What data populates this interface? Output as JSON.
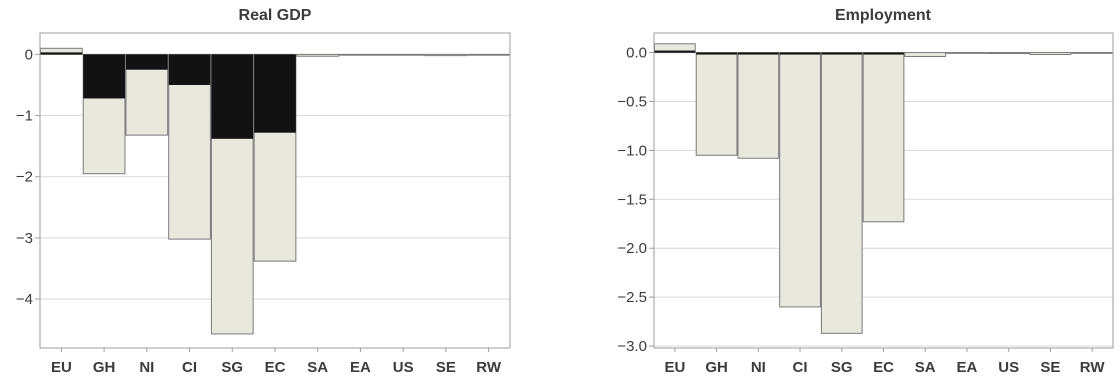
{
  "colors": {
    "total": "#e8e8df",
    "black": "#121212",
    "bar_edge": "#7a7a7a"
  },
  "chart_data": [
    {
      "type": "bar",
      "title": "Real GDP",
      "xlabel": "",
      "ylabel": "",
      "categories": [
        "EU",
        "GH",
        "NI",
        "CI",
        "SG",
        "EC",
        "SA",
        "EA",
        "US",
        "SE",
        "RW"
      ],
      "ylim": [
        -4.8,
        0.35
      ],
      "yticks": [
        0,
        -1,
        -2,
        -3,
        -4
      ],
      "ytick_labels": [
        "0",
        "−1",
        "−2",
        "−3",
        "−4"
      ],
      "grid": true,
      "series": [
        {
          "values": [
            0.1,
            -1.95,
            -1.32,
            -3.02,
            -4.57,
            -3.38,
            -0.03,
            0.0,
            0.0,
            -0.02,
            0.0
          ]
        },
        {
          "values": [
            0.02,
            -0.72,
            -0.25,
            -0.5,
            -1.38,
            -1.28,
            0.0,
            0.0,
            0.0,
            0.0,
            0.0
          ]
        }
      ]
    },
    {
      "type": "bar",
      "title": "Employment",
      "xlabel": "",
      "ylabel": "",
      "categories": [
        "EU",
        "GH",
        "NI",
        "CI",
        "SG",
        "EC",
        "SA",
        "EA",
        "US",
        "SE",
        "RW"
      ],
      "ylim": [
        -3.02,
        0.2
      ],
      "yticks": [
        0.0,
        -0.5,
        -1.0,
        -1.5,
        -2.0,
        -2.5,
        -3.0
      ],
      "ytick_labels": [
        "0.0",
        "−0.5",
        "−1.0",
        "−1.5",
        "−2.0",
        "−2.5",
        "−3.0"
      ],
      "grid": true,
      "series": [
        {
          "values": [
            0.09,
            -1.05,
            -1.08,
            -2.6,
            -2.87,
            -1.73,
            -0.04,
            0.0,
            -0.01,
            -0.02,
            0.0
          ]
        },
        {
          "values": [
            0.02,
            -0.01,
            -0.02,
            -0.02,
            -0.01,
            -0.02,
            0.0,
            0.0,
            0.0,
            0.0,
            0.0
          ]
        }
      ]
    }
  ]
}
